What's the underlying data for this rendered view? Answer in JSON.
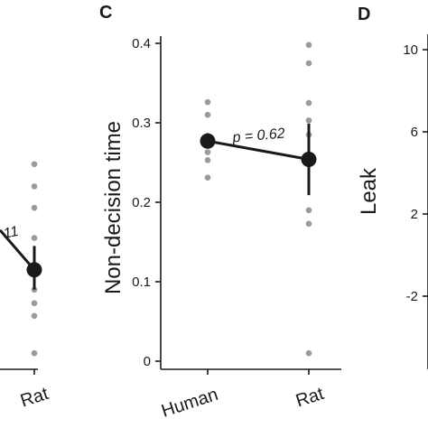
{
  "colors": {
    "axis": "#1a1a1a",
    "mean": "#1a1a1a",
    "points": "#9a9a9a",
    "background": "#ffffff"
  },
  "chart_data": [
    {
      "type": "scatter",
      "panel": "",
      "title": "",
      "categories": [
        "",
        "Rat"
      ],
      "annotation": "11",
      "mean": {
        "category": "Rat",
        "y": 0.115,
        "err_low": 0.09,
        "err_high": 0.145,
        "prev_mean_y": 0.165
      },
      "points": [
        {
          "category": "Rat",
          "y": 0.248
        },
        {
          "category": "Rat",
          "y": 0.22
        },
        {
          "category": "Rat",
          "y": 0.193
        },
        {
          "category": "Rat",
          "y": 0.155
        },
        {
          "category": "Rat",
          "y": 0.09
        },
        {
          "category": "Rat",
          "y": 0.073
        },
        {
          "category": "Rat",
          "y": 0.057
        },
        {
          "category": "Rat",
          "y": 0.01
        }
      ]
    },
    {
      "type": "scatter",
      "panel": "C",
      "title": "",
      "ylabel": "Non-decision time",
      "xlabel": "",
      "categories": [
        "Human",
        "Rat"
      ],
      "ylim": [
        0,
        0.42
      ],
      "yticks": [
        "0",
        "0.1",
        "0.2",
        "0.3",
        "0.4"
      ],
      "annotation": "p = 0.62",
      "means": [
        {
          "category": "Human",
          "y": 0.277,
          "err_low": 0.268,
          "err_high": 0.287
        },
        {
          "category": "Rat",
          "y": 0.254,
          "err_low": 0.209,
          "err_high": 0.299
        }
      ],
      "points": [
        {
          "category": "Human",
          "y": 0.326
        },
        {
          "category": "Human",
          "y": 0.31
        },
        {
          "category": "Human",
          "y": 0.28
        },
        {
          "category": "Human",
          "y": 0.263
        },
        {
          "category": "Human",
          "y": 0.253
        },
        {
          "category": "Human",
          "y": 0.231
        },
        {
          "category": "Rat",
          "y": 0.398
        },
        {
          "category": "Rat",
          "y": 0.375
        },
        {
          "category": "Rat",
          "y": 0.325
        },
        {
          "category": "Rat",
          "y": 0.303
        },
        {
          "category": "Rat",
          "y": 0.285
        },
        {
          "category": "Rat",
          "y": 0.19
        },
        {
          "category": "Rat",
          "y": 0.173
        },
        {
          "category": "Rat",
          "y": 0.01
        }
      ]
    },
    {
      "type": "scatter",
      "panel": "D",
      "title": "",
      "ylabel": "Leak",
      "yticks": [
        "10",
        "6",
        "2",
        "-2"
      ],
      "ytick_values": [
        10,
        6,
        2,
        -2
      ],
      "ylim": [
        -5,
        11
      ],
      "categories": []
    }
  ]
}
